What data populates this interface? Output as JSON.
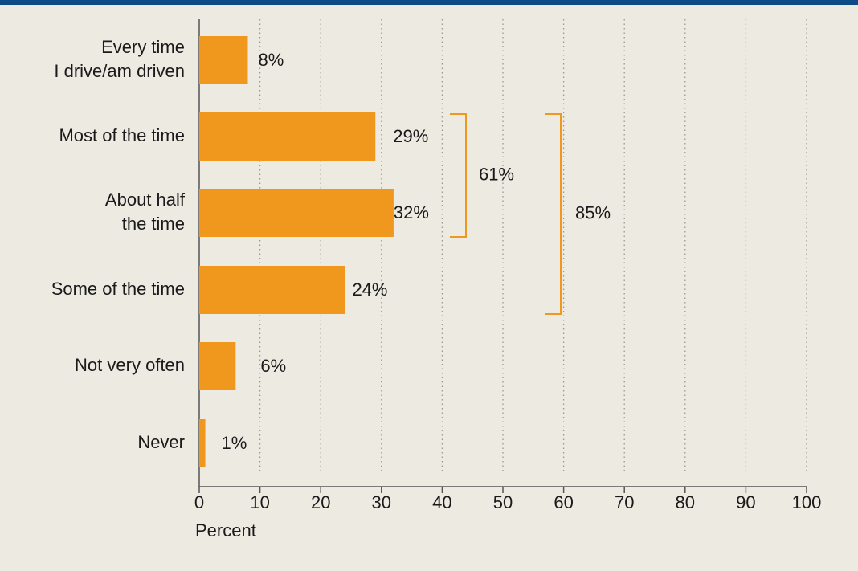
{
  "chart_data": {
    "type": "bar",
    "orientation": "horizontal",
    "categories": [
      [
        "Every time",
        "I drive/am driven"
      ],
      [
        "Most of the time"
      ],
      [
        "About half",
        "the time"
      ],
      [
        "Some of the time"
      ],
      [
        "Not very often"
      ],
      [
        "Never"
      ]
    ],
    "values": [
      8,
      29,
      32,
      24,
      6,
      1
    ],
    "data_labels": [
      "8%",
      "29%",
      "32%",
      "24%",
      "6%",
      "1%"
    ],
    "xlabel": "Percent",
    "xlim": [
      0,
      100
    ],
    "xticks": [
      0,
      10,
      20,
      30,
      40,
      50,
      60,
      70,
      80,
      90,
      100
    ],
    "grid": "vertical dotted",
    "brackets": [
      {
        "from_index": 1,
        "to_index": 2,
        "label": "61%"
      },
      {
        "from_index": 1,
        "to_index": 3,
        "label": "85%"
      }
    ],
    "colors": {
      "bar": "#f0981e",
      "bracket": "#f0981e",
      "background": "#edeae2",
      "top_bar": "#0d4b86"
    }
  }
}
